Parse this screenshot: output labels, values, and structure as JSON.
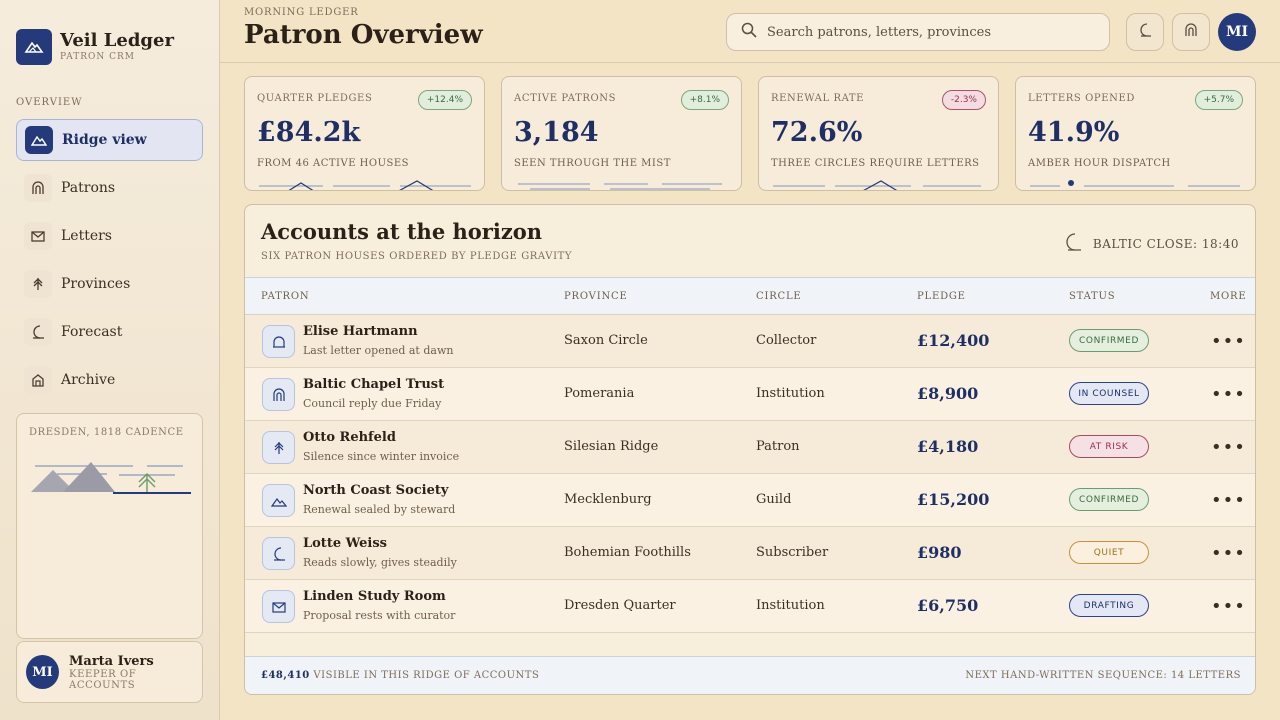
{
  "brand": {
    "title": "Veil Ledger",
    "subtitle": "PATRON CRM"
  },
  "sidebar": {
    "section": "OVERVIEW",
    "items": [
      {
        "label": "Ridge view",
        "icon": "mountain-icon"
      },
      {
        "label": "Patrons",
        "icon": "arch-icon"
      },
      {
        "label": "Letters",
        "icon": "envelope-icon"
      },
      {
        "label": "Provinces",
        "icon": "tree-icon"
      },
      {
        "label": "Forecast",
        "icon": "moon-icon"
      },
      {
        "label": "Archive",
        "icon": "archive-icon"
      }
    ],
    "cadence_label": "DRESDEN, 1818 CADENCE",
    "profile": {
      "initials": "MI",
      "name": "Marta Ivers",
      "role": "KEEPER OF ACCOUNTS"
    }
  },
  "header": {
    "eyebrow": "MORNING LEDGER",
    "title": "Patron Overview",
    "search_placeholder": "Search patrons, letters, provinces",
    "avatar_initials": "MI"
  },
  "metrics": [
    {
      "label": "QUARTER PLEDGES",
      "badge": "+12.4%",
      "trend": "up",
      "value": "£84.2k",
      "sub": "FROM 46 ACTIVE HOUSES"
    },
    {
      "label": "ACTIVE PATRONS",
      "badge": "+8.1%",
      "trend": "up",
      "value": "3,184",
      "sub": "SEEN THROUGH THE MIST"
    },
    {
      "label": "RENEWAL RATE",
      "badge": "-2.3%",
      "trend": "down",
      "value": "72.6%",
      "sub": "THREE CIRCLES REQUIRE LETTERS"
    },
    {
      "label": "LETTERS OPENED",
      "badge": "+5.7%",
      "trend": "up",
      "value": "41.9%",
      "sub": "AMBER HOUR DISPATCH"
    }
  ],
  "table": {
    "title": "Accounts at the horizon",
    "subtitle": "SIX PATRON HOUSES ORDERED BY PLEDGE GRAVITY",
    "close_label": "BALTIC CLOSE: 18:40",
    "columns": [
      "PATRON",
      "PROVINCE",
      "CIRCLE",
      "PLEDGE",
      "STATUS",
      "MORE"
    ],
    "rows": [
      {
        "name": "Elise Hartmann",
        "note": "Last letter opened at dawn",
        "province": "Saxon Circle",
        "circle": "Collector",
        "pledge": "£12,400",
        "status": "CONFIRMED",
        "status_kind": "confirmed",
        "icon": "bell-icon"
      },
      {
        "name": "Baltic Chapel Trust",
        "note": "Council reply due Friday",
        "province": "Pomerania",
        "circle": "Institution",
        "pledge": "£8,900",
        "status": "IN COUNSEL",
        "status_kind": "counsel",
        "icon": "arch-icon"
      },
      {
        "name": "Otto Rehfeld",
        "note": "Silence since winter invoice",
        "province": "Silesian Ridge",
        "circle": "Patron",
        "pledge": "£4,180",
        "status": "AT RISK",
        "status_kind": "risk",
        "icon": "tree-icon"
      },
      {
        "name": "North Coast Society",
        "note": "Renewal sealed by steward",
        "province": "Mecklenburg",
        "circle": "Guild",
        "pledge": "£15,200",
        "status": "CONFIRMED",
        "status_kind": "confirmed",
        "icon": "mountain-icon"
      },
      {
        "name": "Lotte Weiss",
        "note": "Reads slowly, gives steadily",
        "province": "Bohemian Foothills",
        "circle": "Subscriber",
        "pledge": "£980",
        "status": "QUIET",
        "status_kind": "quiet",
        "icon": "moon-icon"
      },
      {
        "name": "Linden Study Room",
        "note": "Proposal rests with curator",
        "province": "Dresden Quarter",
        "circle": "Institution",
        "pledge": "£6,750",
        "status": "DRAFTING",
        "status_kind": "draft",
        "icon": "envelope-icon"
      }
    ],
    "more_label": "•••",
    "footer_total": "£48,410",
    "footer_left": "VISIBLE IN THIS RIDGE OF ACCOUNTS",
    "footer_right": "NEXT HAND-WRITTEN SEQUENCE: 14 LETTERS"
  },
  "colors": {
    "accent": "#243a7a",
    "background": "#f3e4c6",
    "positive": "#3d6a44",
    "negative": "#9c2f4f"
  }
}
